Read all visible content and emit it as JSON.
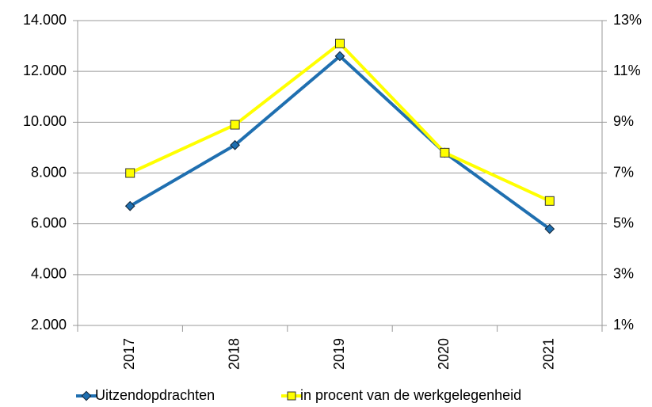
{
  "chart_data": {
    "type": "line",
    "categories": [
      "2017",
      "2018",
      "2019",
      "2020",
      "2021"
    ],
    "series": [
      {
        "name": "Uitzendopdrachten",
        "color": "#1f6fb0",
        "values": [
          6700,
          9100,
          12600,
          8800,
          5800
        ]
      },
      {
        "name": "in procent van de werkgelegenheid",
        "color": "#ffff00",
        "axis": "y2",
        "values": [
          7.0,
          8.9,
          12.1,
          7.8,
          5.9
        ]
      }
    ],
    "ylim": [
      2000,
      14000
    ],
    "yticks": [
      {
        "value": 2000,
        "label": "2.000"
      },
      {
        "value": 4000,
        "label": "4.000"
      },
      {
        "value": 6000,
        "label": "6.000"
      },
      {
        "value": 8000,
        "label": "8.000"
      },
      {
        "value": 10000,
        "label": "10.000"
      },
      {
        "value": 12000,
        "label": "12.000"
      },
      {
        "value": 14000,
        "label": "14.000"
      }
    ],
    "y2lim": [
      1,
      13
    ],
    "y2ticks": [
      {
        "value": 1,
        "label": "1%"
      },
      {
        "value": 3,
        "label": "3%"
      },
      {
        "value": 5,
        "label": "5%"
      },
      {
        "value": 7,
        "label": "7%"
      },
      {
        "value": 9,
        "label": "9%"
      },
      {
        "value": 11,
        "label": "11%"
      },
      {
        "value": 13,
        "label": "13%"
      }
    ],
    "grid": true,
    "legend": "bottom"
  }
}
